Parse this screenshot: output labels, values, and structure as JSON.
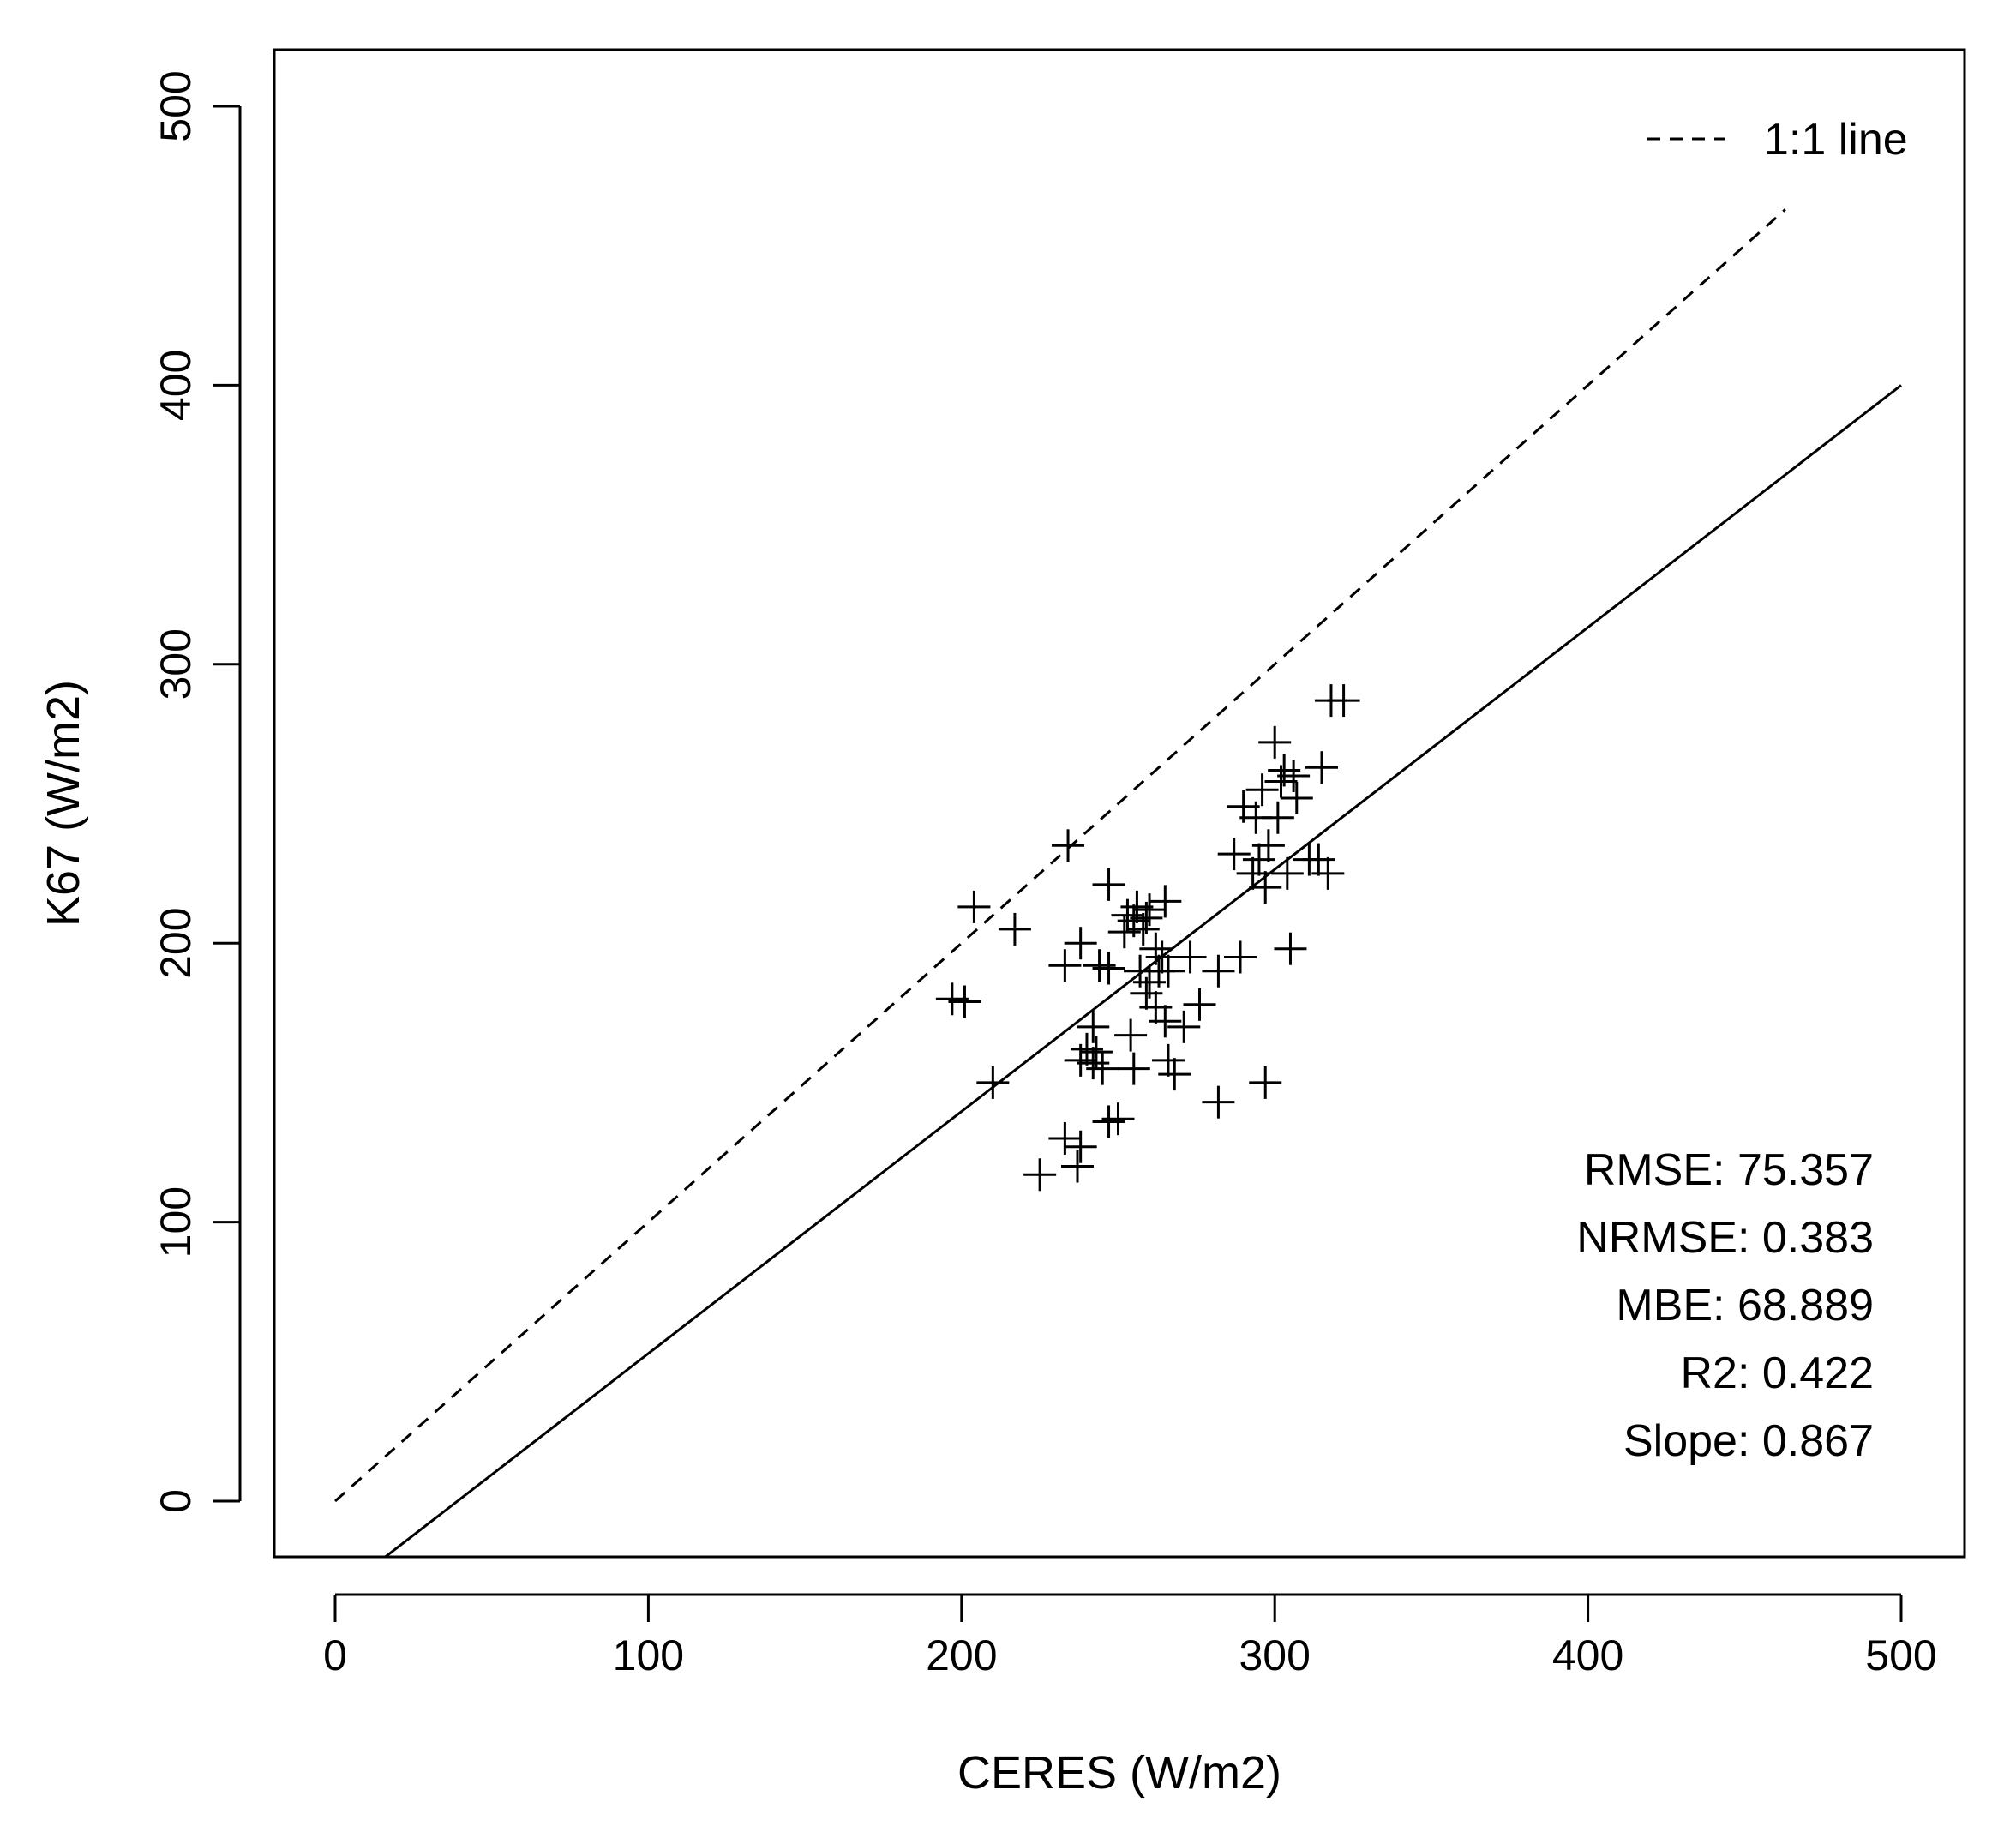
{
  "chart_data": {
    "type": "scatter",
    "xlabel": "CERES (W/m2)",
    "ylabel": "K67 (W/m2)",
    "xlim": [
      -20,
      520
    ],
    "ylim": [
      -20,
      520
    ],
    "x_ticks": [
      0,
      100,
      200,
      300,
      400,
      500
    ],
    "y_ticks": [
      0,
      100,
      200,
      300,
      400,
      500
    ],
    "x_tick_labels": [
      "0",
      "100",
      "200",
      "300",
      "400",
      "500"
    ],
    "y_tick_labels": [
      "0",
      "100",
      "200",
      "300",
      "400",
      "500"
    ],
    "grid": false,
    "legend": {
      "position": "top-right",
      "entries": [
        {
          "label": "1:1 line",
          "style": "dashed"
        }
      ]
    },
    "lines": [
      {
        "name": "1:1 line",
        "style": "dashed",
        "points": [
          [
            0,
            0
          ],
          [
            463,
            463
          ]
        ]
      },
      {
        "name": "regression",
        "style": "solid",
        "points": [
          [
            16,
            -20
          ],
          [
            500,
            400
          ]
        ]
      }
    ],
    "stats": [
      "RMSE: 75.357",
      "NRMSE: 0.383",
      "MBE: 68.889",
      "R2: 0.422",
      "Slope: 0.867"
    ],
    "series": [
      {
        "name": "observations",
        "marker": "plus",
        "points": [
          [
            197,
            180
          ],
          [
            201,
            179
          ],
          [
            204,
            213
          ],
          [
            217,
            205
          ],
          [
            210,
            150
          ],
          [
            225,
            117
          ],
          [
            233,
            130
          ],
          [
            237,
            120
          ],
          [
            238,
            127
          ],
          [
            233,
            192
          ],
          [
            234,
            235
          ],
          [
            238,
            200
          ],
          [
            238,
            158
          ],
          [
            240,
            162
          ],
          [
            242,
            157
          ],
          [
            243,
            161
          ],
          [
            242,
            170
          ],
          [
            245,
            155
          ],
          [
            244,
            192
          ],
          [
            247,
            191
          ],
          [
            247,
            221
          ],
          [
            247,
            136
          ],
          [
            250,
            137
          ],
          [
            252,
            204
          ],
          [
            253,
            210
          ],
          [
            255,
            208
          ],
          [
            256,
            213
          ],
          [
            258,
            205
          ],
          [
            259,
            209
          ],
          [
            260,
            212
          ],
          [
            262,
            198
          ],
          [
            254,
            167
          ],
          [
            255,
            155
          ],
          [
            257,
            190
          ],
          [
            259,
            182
          ],
          [
            260,
            186
          ],
          [
            262,
            177
          ],
          [
            263,
            190
          ],
          [
            264,
            195
          ],
          [
            266,
            190
          ],
          [
            265,
            172
          ],
          [
            266,
            158
          ],
          [
            268,
            153
          ],
          [
            265,
            215
          ],
          [
            271,
            170
          ],
          [
            273,
            195
          ],
          [
            276,
            178
          ],
          [
            282,
            143
          ],
          [
            282,
            190
          ],
          [
            289,
            195
          ],
          [
            287,
            232
          ],
          [
            290,
            249
          ],
          [
            293,
            225
          ],
          [
            294,
            245
          ],
          [
            295,
            230
          ],
          [
            297,
            220
          ],
          [
            296,
            255
          ],
          [
            298,
            235
          ],
          [
            297,
            150
          ],
          [
            300,
            272
          ],
          [
            301,
            245
          ],
          [
            302,
            258
          ],
          [
            303,
            262
          ],
          [
            304,
            225
          ],
          [
            305,
            198
          ],
          [
            306,
            260
          ],
          [
            307,
            252
          ],
          [
            311,
            230
          ],
          [
            314,
            230
          ],
          [
            315,
            263
          ],
          [
            317,
            225
          ],
          [
            318,
            287
          ],
          [
            322,
            287
          ]
        ]
      }
    ]
  }
}
